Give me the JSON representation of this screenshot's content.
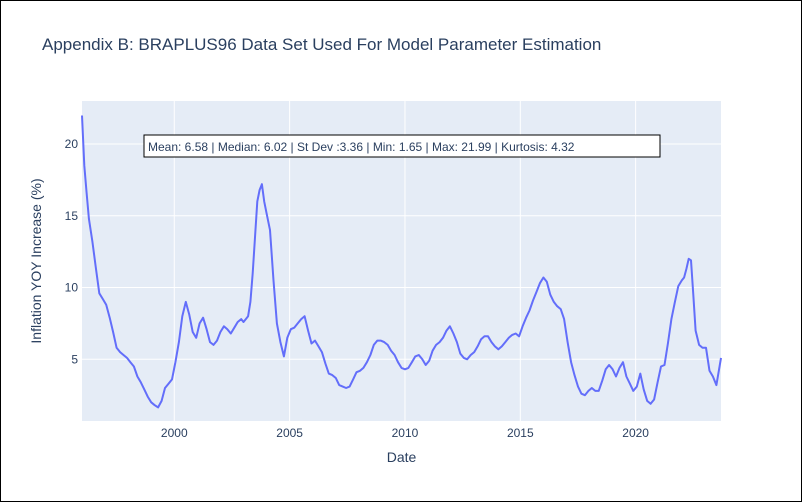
{
  "chart_data": {
    "type": "line",
    "title": "Appendix B: BRAPLUS96 Data Set Used For Model Parameter Estimation",
    "xlabel": "Date",
    "ylabel": "Inflation YOY Increase (%)",
    "xlim": [
      1996.0,
      2023.7
    ],
    "ylim": [
      0.7,
      23.0
    ],
    "x_ticks": [
      2000,
      2005,
      2010,
      2015,
      2020
    ],
    "y_ticks": [
      5,
      10,
      15,
      20
    ],
    "grid": true,
    "annotation": "Mean: 6.58 | Median: 6.02 | St Dev :3.36 | Min: 1.65 | Max: 21.99 | Kurtosis: 4.32",
    "line_color": "#636efa",
    "plot_bgcolor": "#e5ecf6",
    "series": [
      {
        "x": [
          1996.0,
          1996.1,
          1996.2,
          1996.3,
          1996.45,
          1996.6,
          1996.75,
          1996.9,
          1997.05,
          1997.2,
          1997.35,
          1997.5,
          1997.65,
          1997.8,
          1997.95,
          1998.1,
          1998.25,
          1998.4,
          1998.55,
          1998.7,
          1998.85,
          1999.0,
          1999.15,
          1999.3,
          1999.45,
          1999.6,
          1999.75,
          1999.9,
          2000.05,
          2000.2,
          2000.35,
          2000.5,
          2000.65,
          2000.8,
          2000.95,
          2001.1,
          2001.25,
          2001.4,
          2001.55,
          2001.7,
          2001.85,
          2002.0,
          2002.15,
          2002.3,
          2002.45,
          2002.6,
          2002.75,
          2002.9,
          2003.0,
          2003.1,
          2003.2,
          2003.3,
          2003.4,
          2003.5,
          2003.6,
          2003.7,
          2003.8,
          2003.9,
          2004.0,
          2004.15,
          2004.3,
          2004.45,
          2004.6,
          2004.75,
          2004.9,
          2005.05,
          2005.2,
          2005.35,
          2005.5,
          2005.65,
          2005.8,
          2005.95,
          2006.1,
          2006.25,
          2006.4,
          2006.55,
          2006.7,
          2006.85,
          2007.0,
          2007.15,
          2007.3,
          2007.45,
          2007.6,
          2007.75,
          2007.9,
          2008.05,
          2008.2,
          2008.35,
          2008.5,
          2008.65,
          2008.8,
          2008.95,
          2009.1,
          2009.25,
          2009.4,
          2009.55,
          2009.7,
          2009.85,
          2010.0,
          2010.15,
          2010.3,
          2010.45,
          2010.6,
          2010.75,
          2010.9,
          2011.05,
          2011.2,
          2011.35,
          2011.5,
          2011.65,
          2011.8,
          2011.95,
          2012.1,
          2012.25,
          2012.4,
          2012.55,
          2012.7,
          2012.85,
          2013.0,
          2013.15,
          2013.3,
          2013.45,
          2013.6,
          2013.75,
          2013.9,
          2014.05,
          2014.2,
          2014.35,
          2014.5,
          2014.65,
          2014.8,
          2014.95,
          2015.1,
          2015.25,
          2015.4,
          2015.55,
          2015.7,
          2015.85,
          2016.0,
          2016.15,
          2016.3,
          2016.45,
          2016.6,
          2016.75,
          2016.9,
          2017.05,
          2017.2,
          2017.35,
          2017.5,
          2017.65,
          2017.8,
          2017.95,
          2018.1,
          2018.25,
          2018.4,
          2018.55,
          2018.7,
          2018.85,
          2019.0,
          2019.15,
          2019.3,
          2019.45,
          2019.6,
          2019.75,
          2019.9,
          2020.05,
          2020.2,
          2020.35,
          2020.5,
          2020.65,
          2020.8,
          2020.95,
          2021.1,
          2021.25,
          2021.4,
          2021.55,
          2021.7,
          2021.85,
          2022.0,
          2022.1,
          2022.2,
          2022.3,
          2022.4,
          2022.5,
          2022.6,
          2022.75,
          2022.9,
          2023.05,
          2023.2,
          2023.35,
          2023.5,
          2023.7
        ],
        "y": [
          21.99,
          18.5,
          16.6,
          14.8,
          13.2,
          11.4,
          9.6,
          9.2,
          8.8,
          7.9,
          6.9,
          5.8,
          5.5,
          5.3,
          5.1,
          4.8,
          4.5,
          3.8,
          3.4,
          2.9,
          2.4,
          2.0,
          1.8,
          1.65,
          2.1,
          3.0,
          3.3,
          3.6,
          4.8,
          6.2,
          8.0,
          9.0,
          8.1,
          6.9,
          6.5,
          7.5,
          7.9,
          7.1,
          6.2,
          6.0,
          6.3,
          6.9,
          7.3,
          7.1,
          6.8,
          7.2,
          7.6,
          7.8,
          7.6,
          7.8,
          8.0,
          9.0,
          11.0,
          13.5,
          16.0,
          16.8,
          17.2,
          16.0,
          15.2,
          14.0,
          10.5,
          7.5,
          6.2,
          5.2,
          6.5,
          7.1,
          7.2,
          7.5,
          7.8,
          8.0,
          7.0,
          6.1,
          6.3,
          5.9,
          5.5,
          4.7,
          4.0,
          3.9,
          3.7,
          3.2,
          3.1,
          3.0,
          3.1,
          3.6,
          4.1,
          4.2,
          4.4,
          4.8,
          5.3,
          6.0,
          6.3,
          6.3,
          6.2,
          6.0,
          5.6,
          5.3,
          4.8,
          4.4,
          4.3,
          4.4,
          4.8,
          5.2,
          5.3,
          5.0,
          4.6,
          4.9,
          5.6,
          6.0,
          6.2,
          6.5,
          7.0,
          7.3,
          6.8,
          6.2,
          5.4,
          5.1,
          5.0,
          5.3,
          5.5,
          5.9,
          6.4,
          6.6,
          6.6,
          6.2,
          5.9,
          5.7,
          5.9,
          6.2,
          6.5,
          6.7,
          6.8,
          6.6,
          7.3,
          7.9,
          8.4,
          9.1,
          9.7,
          10.3,
          10.7,
          10.4,
          9.5,
          9.0,
          8.7,
          8.5,
          7.8,
          6.2,
          4.8,
          3.9,
          3.1,
          2.6,
          2.5,
          2.8,
          3.0,
          2.8,
          2.8,
          3.5,
          4.3,
          4.6,
          4.3,
          3.8,
          4.4,
          4.8,
          3.8,
          3.3,
          2.8,
          3.1,
          4.0,
          2.9,
          2.1,
          1.9,
          2.2,
          3.4,
          4.5,
          4.6,
          6.1,
          7.8,
          9.0,
          10.1,
          10.5,
          10.7,
          11.3,
          12.0,
          11.9,
          9.5,
          7.0,
          6.0,
          5.8,
          5.8,
          4.2,
          3.8,
          3.2,
          5.1
        ]
      }
    ]
  }
}
